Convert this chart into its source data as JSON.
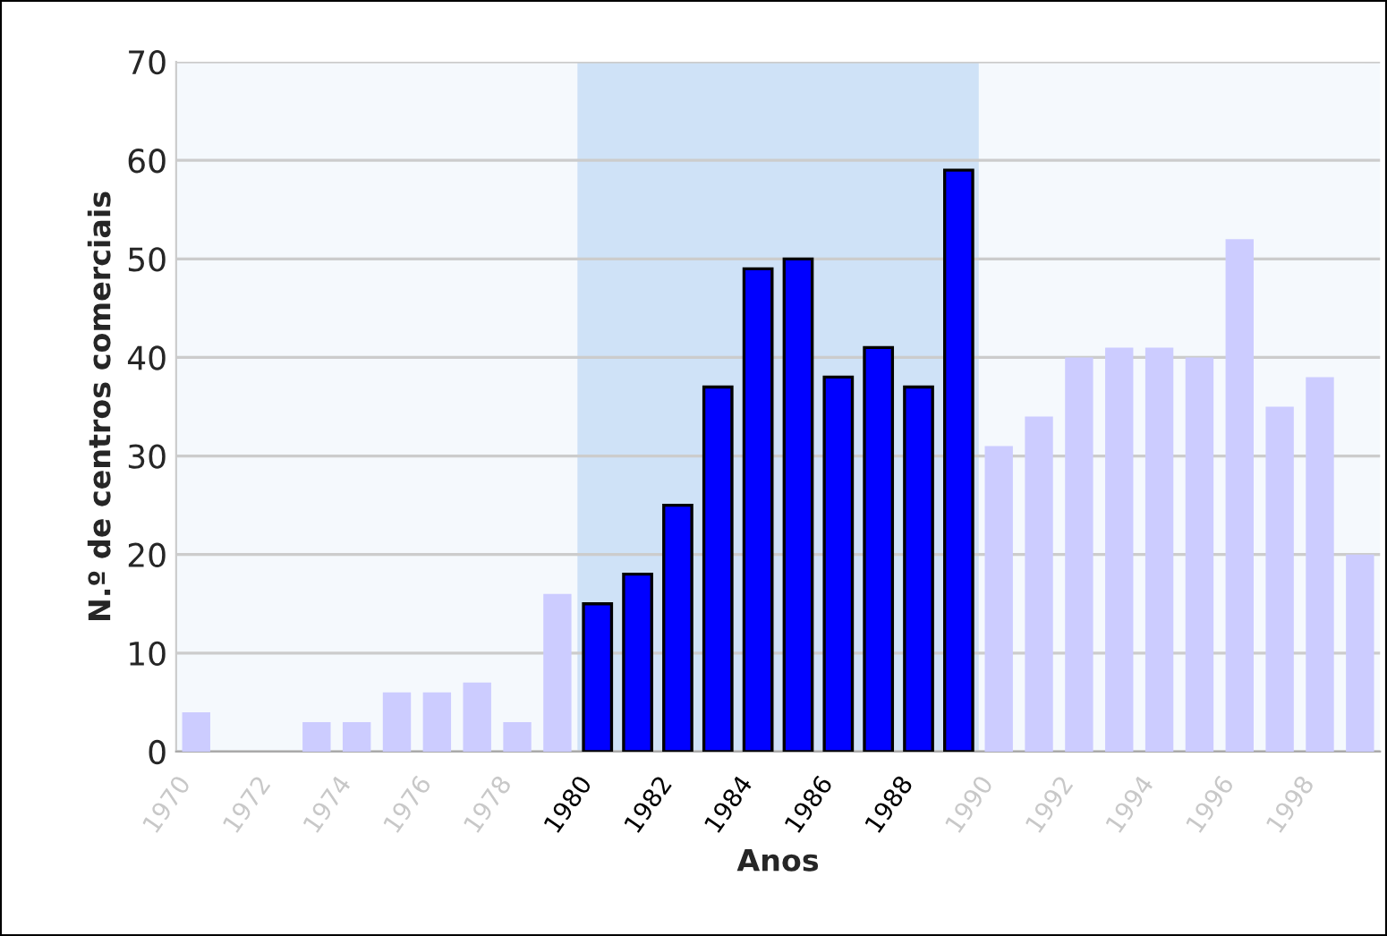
{
  "chart_data": {
    "type": "bar",
    "xlabel": "Anos",
    "ylabel": "N.º de centros comerciais",
    "categories": [
      "1970",
      null,
      "1972",
      null,
      "1974",
      null,
      "1976",
      null,
      "1978",
      null,
      "1980",
      null,
      "1982",
      null,
      "1984",
      null,
      "1986",
      null,
      "1988",
      null,
      "1990",
      null,
      "1992",
      null,
      "1994",
      null,
      "1996",
      null,
      "1998",
      null
    ],
    "values": [
      4,
      0,
      0,
      3,
      3,
      6,
      6,
      7,
      3,
      16,
      15,
      18,
      25,
      37,
      49,
      50,
      38,
      41,
      37,
      59,
      31,
      34,
      40,
      41,
      41,
      40,
      52,
      35,
      38,
      20
    ],
    "colors": [
      "#ccccff",
      "#ccccff",
      "#ccccff",
      "#ccccff",
      "#ccccff",
      "#ccccff",
      "#ccccff",
      "#ccccff",
      "#ccccff",
      "#ccccff",
      "#0000ff",
      "#0000ff",
      "#0000ff",
      "#0000ff",
      "#0000ff",
      "#0000ff",
      "#0000ff",
      "#0000ff",
      "#0000ff",
      "#0000ff",
      "#ccccff",
      "#ccccff",
      "#ccccff",
      "#ccccff",
      "#ccccff",
      "#ccccff",
      "#ccccff",
      "#ccccff",
      "#ccccff",
      "#ccccff"
    ],
    "ylim": [
      0,
      70
    ],
    "yticks": [
      0,
      10,
      20,
      30,
      40,
      50,
      60,
      70
    ],
    "grid": "y",
    "bands": [
      {
        "axis": "x",
        "from": "1980",
        "to": "1990",
        "color": "#cfe2f7"
      }
    ]
  }
}
